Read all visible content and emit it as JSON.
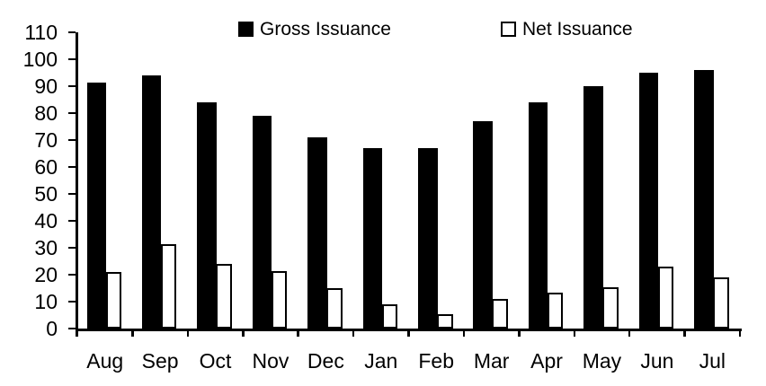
{
  "chart_data": {
    "type": "bar",
    "title": "",
    "xlabel": "",
    "ylabel": "",
    "categories": [
      "Aug",
      "Sep",
      "Oct",
      "Nov",
      "Dec",
      "Jan",
      "Feb",
      "Mar",
      "Apr",
      "May",
      "Jun",
      "Jul"
    ],
    "series": [
      {
        "name": "Gross Issuance",
        "values": [
          91.5,
          94,
          84,
          79,
          71,
          67,
          67,
          77,
          84,
          90,
          95,
          96
        ],
        "fill": "#000000",
        "outline": "#000000"
      },
      {
        "name": "Net Issuance",
        "values": [
          21,
          31.5,
          24,
          21.5,
          15,
          9,
          5.5,
          11,
          13.5,
          15.5,
          23,
          19
        ],
        "fill": "#ffffff",
        "outline": "#000000"
      }
    ],
    "ylim": [
      0,
      110
    ],
    "ytick_step": 10,
    "ytick_labels": [
      "0",
      "10",
      "20",
      "30",
      "40",
      "50",
      "60",
      "70",
      "80",
      "90",
      "100",
      "110"
    ],
    "legend_position": "top-center",
    "grid": false,
    "background": "#ffffff",
    "axis_color": "#000000"
  }
}
